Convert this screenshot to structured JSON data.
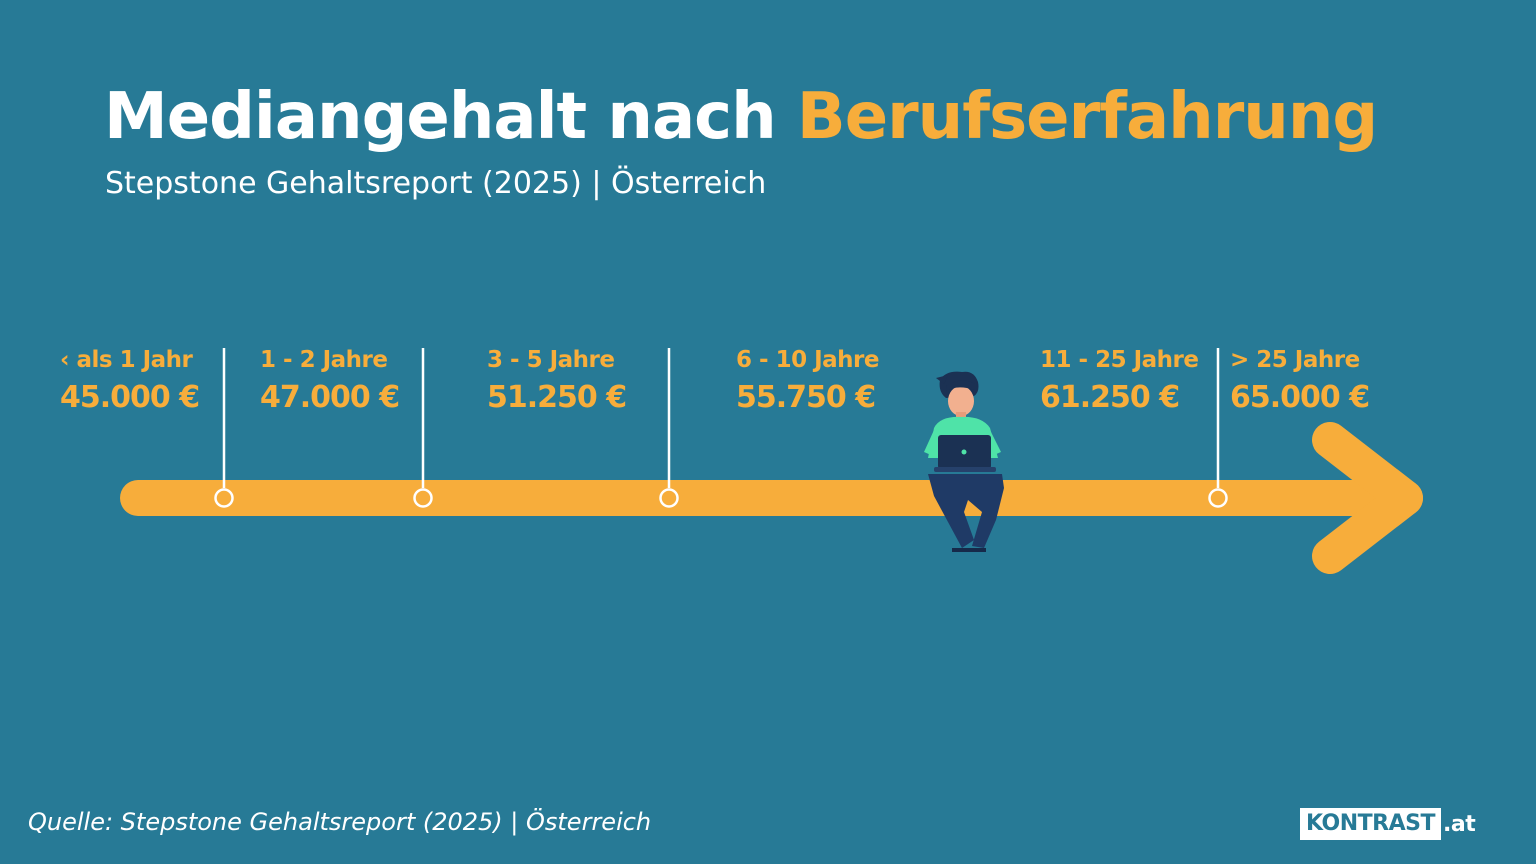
{
  "title": {
    "main": "Mediangehalt nach",
    "accent": "Berufserfahrung"
  },
  "subtitle": "Stepstone Gehaltsreport (2025) | Österreich",
  "stages": [
    {
      "range": "‹ als 1 Jahr",
      "salary": "45.000 €"
    },
    {
      "range": "1 - 2 Jahre",
      "salary": "47.000 €"
    },
    {
      "range": "3 - 5 Jahre",
      "salary": "51.250 €"
    },
    {
      "range": "6 - 10 Jahre",
      "salary": "55.750 €"
    },
    {
      "range": "11  - 25 Jahre",
      "salary": "61.250 €"
    },
    {
      "range": ">  25 Jahre",
      "salary": "65.000 €"
    }
  ],
  "source": "Quelle: Stepstone Gehaltsreport (2025) | Österreich",
  "logo": {
    "name": "KONTRAST",
    "tld": ".at"
  },
  "colors": {
    "background": "#277a96",
    "accent": "#f7ad3b",
    "text": "#ffffff"
  }
}
